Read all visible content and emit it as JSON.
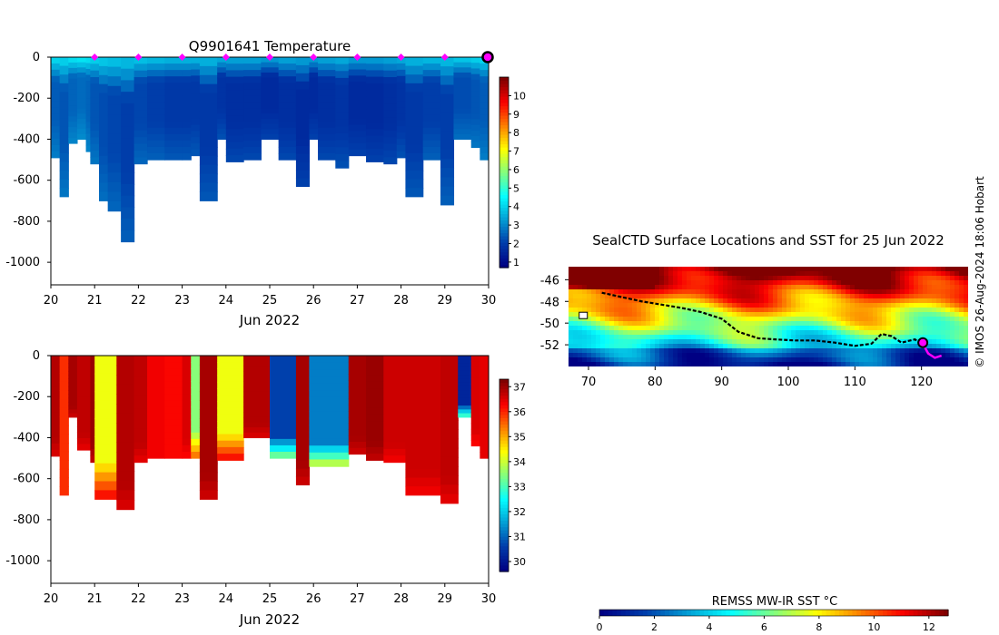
{
  "chart_data": [
    {
      "id": "temperature",
      "type": "heatmap",
      "title": "Q9901641  Temperature",
      "xlabel": "Jun 2022",
      "ylabel": "",
      "x_ticks": [
        "20",
        "21",
        "22",
        "23",
        "24",
        "25",
        "26",
        "27",
        "28",
        "29",
        "30"
      ],
      "xlim": [
        20,
        30
      ],
      "y_ticks": [
        "0",
        "-200",
        "-400",
        "-600",
        "-800",
        "-1000"
      ],
      "ylim": [
        -1110,
        0
      ],
      "colorbar": {
        "ticks": [
          "1",
          "2",
          "3",
          "4",
          "5",
          "6",
          "7",
          "8",
          "9",
          "10"
        ],
        "range": [
          0.7,
          11
        ]
      },
      "surface_markers_days": [
        21,
        22,
        23,
        24,
        25,
        26,
        27,
        28,
        29
      ],
      "current_marker_day": 30,
      "profiles": [
        {
          "day": 20.0,
          "max_depth": 490,
          "value": 2.4
        },
        {
          "day": 20.2,
          "max_depth": 680,
          "value": 2.3
        },
        {
          "day": 20.4,
          "max_depth": 420,
          "value": 2.5
        },
        {
          "day": 20.6,
          "max_depth": 400,
          "value": 2.6
        },
        {
          "day": 20.8,
          "max_depth": 460,
          "value": 2.5
        },
        {
          "day": 20.9,
          "max_depth": 520,
          "value": 2.3
        },
        {
          "day": 21.1,
          "max_depth": 700,
          "value": 2.2
        },
        {
          "day": 21.3,
          "max_depth": 750,
          "value": 2.1
        },
        {
          "day": 21.6,
          "max_depth": 900,
          "value": 2.0
        },
        {
          "day": 21.9,
          "max_depth": 520,
          "value": 2.1
        },
        {
          "day": 22.2,
          "max_depth": 500,
          "value": 2.0
        },
        {
          "day": 22.6,
          "max_depth": 500,
          "value": 1.9
        },
        {
          "day": 23.0,
          "max_depth": 500,
          "value": 1.9
        },
        {
          "day": 23.2,
          "max_depth": 480,
          "value": 1.9
        },
        {
          "day": 23.4,
          "max_depth": 700,
          "value": 1.9
        },
        {
          "day": 23.8,
          "max_depth": 400,
          "value": 1.8
        },
        {
          "day": 24.0,
          "max_depth": 510,
          "value": 1.7
        },
        {
          "day": 24.4,
          "max_depth": 500,
          "value": 1.7
        },
        {
          "day": 24.8,
          "max_depth": 400,
          "value": 1.6
        },
        {
          "day": 25.2,
          "max_depth": 500,
          "value": 1.7
        },
        {
          "day": 25.6,
          "max_depth": 630,
          "value": 1.6
        },
        {
          "day": 25.9,
          "max_depth": 400,
          "value": 1.6
        },
        {
          "day": 26.1,
          "max_depth": 500,
          "value": 1.7
        },
        {
          "day": 26.5,
          "max_depth": 540,
          "value": 1.8
        },
        {
          "day": 26.8,
          "max_depth": 480,
          "value": 1.6
        },
        {
          "day": 27.2,
          "max_depth": 510,
          "value": 1.6
        },
        {
          "day": 27.6,
          "max_depth": 520,
          "value": 1.7
        },
        {
          "day": 27.9,
          "max_depth": 490,
          "value": 1.8
        },
        {
          "day": 28.1,
          "max_depth": 680,
          "value": 1.9
        },
        {
          "day": 28.5,
          "max_depth": 500,
          "value": 2.0
        },
        {
          "day": 28.9,
          "max_depth": 720,
          "value": 2.0
        },
        {
          "day": 29.2,
          "max_depth": 400,
          "value": 2.2
        },
        {
          "day": 29.6,
          "max_depth": 440,
          "value": 2.3
        },
        {
          "day": 29.8,
          "max_depth": 500,
          "value": 2.4
        }
      ]
    },
    {
      "id": "salinity",
      "type": "heatmap",
      "title": "",
      "xlabel": "Jun 2022",
      "ylabel": "",
      "x_ticks": [
        "20",
        "21",
        "22",
        "23",
        "24",
        "25",
        "26",
        "27",
        "28",
        "29",
        "30"
      ],
      "xlim": [
        20,
        30
      ],
      "y_ticks": [
        "0",
        "-200",
        "-400",
        "-600",
        "-800",
        "-1000"
      ],
      "ylim": [
        -1110,
        0
      ],
      "colorbar": {
        "ticks": [
          "30",
          "31",
          "32",
          "33",
          "34",
          "35",
          "36",
          "37"
        ],
        "range": [
          29.6,
          37.3
        ]
      },
      "profiles": [
        {
          "day": 20.0,
          "max_depth": 490,
          "value": 36.9
        },
        {
          "day": 20.2,
          "max_depth": 680,
          "value": 36.0
        },
        {
          "day": 20.4,
          "max_depth": 300,
          "value": 37.0
        },
        {
          "day": 20.6,
          "max_depth": 460,
          "value": 36.8
        },
        {
          "day": 20.9,
          "max_depth": 520,
          "value": 37.1
        },
        {
          "day": 21.0,
          "max_depth": 700,
          "value": 34.3
        },
        {
          "day": 21.5,
          "max_depth": 750,
          "value": 36.9
        },
        {
          "day": 21.9,
          "max_depth": 520,
          "value": 36.8
        },
        {
          "day": 22.2,
          "max_depth": 500,
          "value": 36.4
        },
        {
          "day": 22.6,
          "max_depth": 500,
          "value": 36.3
        },
        {
          "day": 23.0,
          "max_depth": 500,
          "value": 36.6
        },
        {
          "day": 23.2,
          "max_depth": 500,
          "value": 33.5
        },
        {
          "day": 23.4,
          "max_depth": 700,
          "value": 37.0
        },
        {
          "day": 23.8,
          "max_depth": 510,
          "value": 34.3
        },
        {
          "day": 24.4,
          "max_depth": 400,
          "value": 36.9
        },
        {
          "day": 25.0,
          "max_depth": 500,
          "value": 30.6
        },
        {
          "day": 25.6,
          "max_depth": 630,
          "value": 37.0
        },
        {
          "day": 25.9,
          "max_depth": 540,
          "value": 31.2
        },
        {
          "day": 26.8,
          "max_depth": 480,
          "value": 37.0
        },
        {
          "day": 27.2,
          "max_depth": 510,
          "value": 37.1
        },
        {
          "day": 27.6,
          "max_depth": 520,
          "value": 36.7
        },
        {
          "day": 28.1,
          "max_depth": 680,
          "value": 36.7
        },
        {
          "day": 28.9,
          "max_depth": 720,
          "value": 36.8
        },
        {
          "day": 29.3,
          "max_depth": 300,
          "value": 30.2
        },
        {
          "day": 29.6,
          "max_depth": 440,
          "value": 36.6
        },
        {
          "day": 29.8,
          "max_depth": 500,
          "value": 36.5
        }
      ]
    },
    {
      "id": "sst-map",
      "type": "heatmap",
      "title": "SealCTD Surface Locations and SST for 25 Jun 2022",
      "xlabel": "",
      "ylabel": "",
      "x_ticks": [
        "70",
        "80",
        "90",
        "100",
        "110",
        "120"
      ],
      "xlim": [
        67,
        127
      ],
      "y_ticks": [
        "-46",
        "-48",
        "-50",
        "-52"
      ],
      "ylim": [
        -54,
        -44.8
      ],
      "colorbar": {
        "label": "REMSS MW-IR SST °C",
        "ticks": [
          "0",
          "2",
          "4",
          "6",
          "8",
          "10",
          "12"
        ],
        "range": [
          0,
          12.7
        ]
      },
      "track": [
        [
          72.0,
          -47.2
        ],
        [
          75.0,
          -47.6
        ],
        [
          78.0,
          -48.0
        ],
        [
          81.0,
          -48.3
        ],
        [
          84.0,
          -48.6
        ],
        [
          87.0,
          -49.0
        ],
        [
          90.0,
          -49.6
        ],
        [
          92.5,
          -50.8
        ],
        [
          95.5,
          -51.4
        ],
        [
          98.0,
          -51.5
        ],
        [
          101.0,
          -51.6
        ],
        [
          104.0,
          -51.6
        ],
        [
          107.0,
          -51.8
        ],
        [
          110.0,
          -52.1
        ],
        [
          112.5,
          -51.9
        ],
        [
          114.0,
          -51.0
        ],
        [
          115.5,
          -51.2
        ],
        [
          117.0,
          -51.8
        ],
        [
          119.0,
          -51.5
        ],
        [
          120.0,
          -51.9
        ]
      ],
      "current_position": [
        120.2,
        -51.8
      ],
      "pink_track": [
        [
          120.2,
          -51.9
        ],
        [
          121.0,
          -52.8
        ],
        [
          122.0,
          -53.2
        ],
        [
          123.0,
          -53.0
        ]
      ]
    }
  ],
  "credit": "© IMOS 26-Aug-2024 18:06 Hobart"
}
